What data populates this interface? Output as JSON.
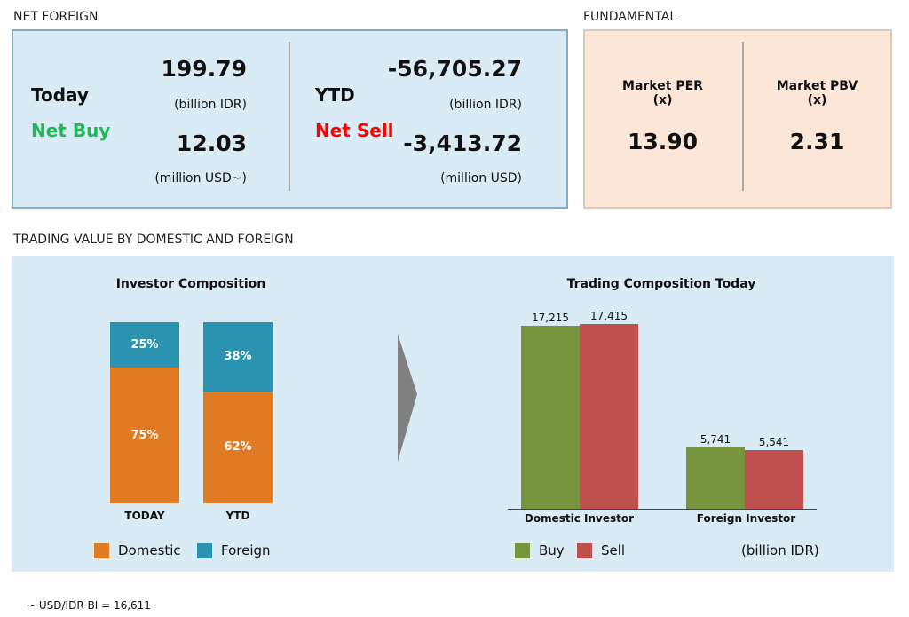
{
  "net_foreign": {
    "section_title": "NET FOREIGN",
    "today": {
      "label": "Today",
      "status": "Net Buy",
      "value_idr": "199.79",
      "unit_idr": "(billion IDR)",
      "value_usd": "12.03",
      "unit_usd": "(million USD~)"
    },
    "ytd": {
      "label": "YTD",
      "status": "Net Sell",
      "value_idr": "-56,705.27",
      "unit_idr": "(billion IDR)",
      "value_usd": "-3,413.72",
      "unit_usd": "(million USD)"
    }
  },
  "fundamental": {
    "section_title": "FUNDAMENTAL",
    "per": {
      "label": "Market PER",
      "unit": "(x)",
      "value": "13.90"
    },
    "pbv": {
      "label": "Market PBV",
      "unit": "(x)",
      "value": "2.31"
    }
  },
  "trading": {
    "section_title": "TRADING VALUE BY DOMESTIC AND FOREIGN"
  },
  "colors": {
    "buy_green": "#1db954",
    "sell_red": "#ff0000",
    "domestic": "#e07b24",
    "foreign": "#2a93b0",
    "buy": "#77933c",
    "sell": "#c0504d"
  },
  "chart_data": [
    {
      "type": "bar",
      "stacked": true,
      "title": "Investor Composition",
      "categories": [
        "TODAY",
        "YTD"
      ],
      "series": [
        {
          "name": "Domestic",
          "values": [
            75,
            62
          ],
          "labels": [
            "75%",
            "62%"
          ]
        },
        {
          "name": "Foreign",
          "values": [
            25,
            38
          ],
          "labels": [
            "25%",
            "38%"
          ]
        }
      ],
      "ylim": [
        0,
        100
      ]
    },
    {
      "type": "bar",
      "title": "Trading Composition Today",
      "categories": [
        "Domestic Investor",
        "Foreign Investor"
      ],
      "series": [
        {
          "name": "Buy",
          "values": [
            17215,
            5741
          ],
          "labels": [
            "17,215",
            "5,741"
          ]
        },
        {
          "name": "Sell",
          "values": [
            17415,
            5541
          ],
          "labels": [
            "17,415",
            "5,541"
          ]
        }
      ],
      "unit": "(billion IDR)",
      "ylim": [
        0,
        17415
      ]
    }
  ],
  "footnote": "~ USD/IDR BI = 16,611"
}
